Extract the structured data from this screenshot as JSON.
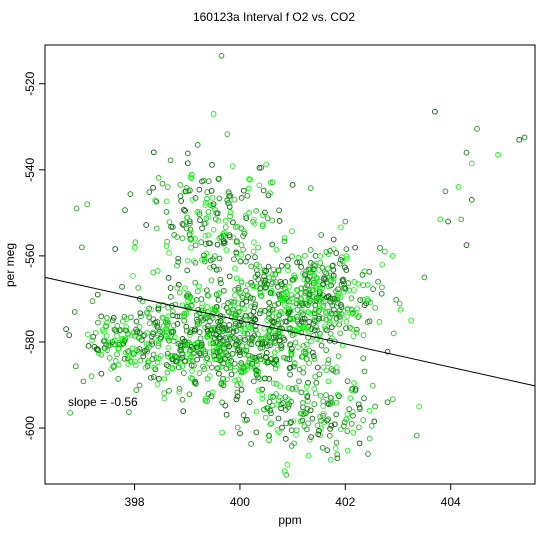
{
  "chart_data": {
    "type": "scatter",
    "title": "160123a   Interval f O2 vs. CO2",
    "xlabel": "ppm",
    "ylabel": "per meg",
    "xlim": [
      396.3,
      405.6
    ],
    "ylim": [
      -613,
      -511
    ],
    "xticks": [
      398,
      400,
      402,
      404
    ],
    "yticks": [
      -520,
      -540,
      -560,
      -580,
      -600
    ],
    "grid": false,
    "annotation": "slope =  -0.56",
    "fit_line": {
      "x": [
        396.3,
        405.6
      ],
      "y": [
        -565.0,
        -590.2
      ],
      "slope": -0.56
    },
    "marker_colors": [
      "#0b5a0b",
      "#147814",
      "#1d9a1d",
      "#27c027",
      "#33e833",
      "#00ff00"
    ],
    "clusters": [
      {
        "cx": 399.6,
        "cy": -580,
        "sx": 1.0,
        "sy": 5.5,
        "n": 720,
        "rho": 0.0
      },
      {
        "cx": 401.5,
        "cy": -570,
        "sx": 0.55,
        "sy": 5.5,
        "n": 330,
        "rho": 0.0
      },
      {
        "cx": 399.4,
        "cy": -552,
        "sx": 0.65,
        "sy": 8.0,
        "n": 200,
        "rho": 0.0
      },
      {
        "cx": 401.3,
        "cy": -596,
        "sx": 0.7,
        "sy": 5.0,
        "n": 170,
        "rho": 0.0
      },
      {
        "cx": 400.6,
        "cy": -566,
        "sx": 0.9,
        "sy": 6.0,
        "n": 120,
        "rho": 0.0
      },
      {
        "cx": 397.6,
        "cy": -580,
        "sx": 0.35,
        "sy": 3.0,
        "n": 70,
        "rho": 0.0
      }
    ],
    "outliers": [
      [
        399.65,
        -513.5
      ],
      [
        399.5,
        -527
      ],
      [
        404.5,
        -530.5
      ],
      [
        405.4,
        -532.5
      ],
      [
        404.9,
        -536.5
      ],
      [
        404.3,
        -536
      ],
      [
        403.7,
        -526.5
      ],
      [
        404.4,
        -538.5
      ],
      [
        404.15,
        -544
      ],
      [
        403.9,
        -545
      ],
      [
        403.95,
        -552
      ],
      [
        404.2,
        -551.5
      ],
      [
        404.3,
        -557.5
      ],
      [
        403.8,
        -551.5
      ],
      [
        404.4,
        -547
      ],
      [
        405.3,
        -533
      ],
      [
        396.7,
        -577
      ],
      [
        397.0,
        -558
      ],
      [
        396.9,
        -549
      ],
      [
        397.1,
        -548
      ],
      [
        397.3,
        -569
      ],
      [
        403.05,
        -572.5
      ],
      [
        403.25,
        -575
      ],
      [
        403.4,
        -595
      ],
      [
        402.8,
        -594
      ],
      [
        400.9,
        -608.5
      ],
      [
        400.85,
        -610
      ],
      [
        401.85,
        -607
      ],
      [
        403.5,
        -565
      ],
      [
        402.0,
        -552
      ],
      [
        402.7,
        -562
      ],
      [
        402.5,
        -599.5
      ],
      [
        397.2,
        -570.5
      ],
      [
        398.1,
        -570
      ],
      [
        401.0,
        -543.5
      ],
      [
        402.9,
        -560
      ]
    ]
  }
}
